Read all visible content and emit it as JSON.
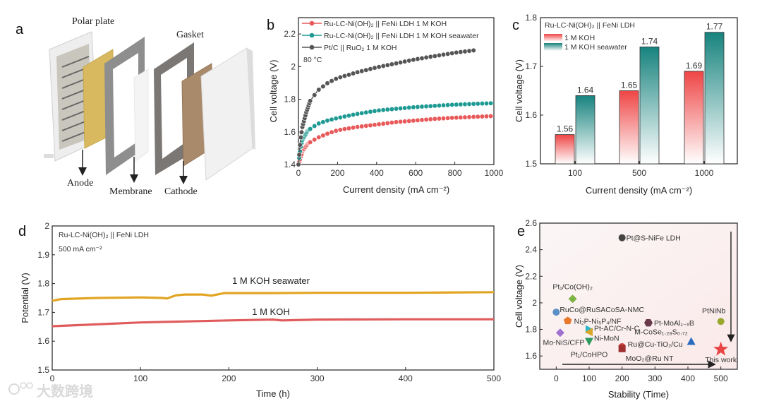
{
  "panel_labels": [
    "a",
    "b",
    "c",
    "d",
    "e"
  ],
  "watermark": "大数跨境",
  "panel_a": {
    "labels": {
      "polar_plate": "Polar plate",
      "gasket": "Gasket",
      "anode": "Anode",
      "membrane": "Membrane",
      "cathode": "Cathode"
    }
  },
  "colors": {
    "red": "#e8595a",
    "teal": "#1f9a93",
    "gray": "#555555",
    "orange": "#e2a523",
    "kohline": "#e05c5c"
  },
  "chart_data": [
    {
      "id": "b",
      "type": "line",
      "xlabel": "Current density (mA cm⁻²)",
      "ylabel": "Cell voltage (V)",
      "xlim": [
        0,
        1000
      ],
      "ylim": [
        1.4,
        2.3
      ],
      "xticks": [
        0,
        200,
        400,
        600,
        800,
        1000
      ],
      "yticks": [
        1.4,
        1.6,
        1.8,
        2.0,
        2.2
      ],
      "annotation": "80 °C",
      "legend": "top-left",
      "series": [
        {
          "name": "Ru-LC-Ni(OH)₂ || FeNi LDH 1 M KOH",
          "color": "#e8595a",
          "points": [
            [
              0,
              1.4
            ],
            [
              10,
              1.44
            ],
            [
              20,
              1.48
            ],
            [
              50,
              1.53
            ],
            [
              100,
              1.565
            ],
            [
              150,
              1.59
            ],
            [
              200,
              1.61
            ],
            [
              300,
              1.63
            ],
            [
              400,
              1.645
            ],
            [
              500,
              1.66
            ],
            [
              600,
              1.67
            ],
            [
              700,
              1.68
            ],
            [
              800,
              1.687
            ],
            [
              900,
              1.692
            ],
            [
              1000,
              1.697
            ]
          ]
        },
        {
          "name": "Ru-LC-Ni(OH)₂ || FeNi LDH 1 M KOH seawater",
          "color": "#1f9a93",
          "points": [
            [
              0,
              1.4
            ],
            [
              10,
              1.5
            ],
            [
              20,
              1.55
            ],
            [
              50,
              1.61
            ],
            [
              100,
              1.65
            ],
            [
              150,
              1.67
            ],
            [
              200,
              1.685
            ],
            [
              300,
              1.71
            ],
            [
              400,
              1.73
            ],
            [
              500,
              1.742
            ],
            [
              600,
              1.752
            ],
            [
              700,
              1.76
            ],
            [
              800,
              1.767
            ],
            [
              900,
              1.772
            ],
            [
              1000,
              1.776
            ]
          ]
        },
        {
          "name": "Pt/C || RuO₂ 1 M KOH",
          "color": "#555555",
          "points": [
            [
              0,
              1.4
            ],
            [
              10,
              1.55
            ],
            [
              20,
              1.63
            ],
            [
              40,
              1.72
            ],
            [
              60,
              1.79
            ],
            [
              100,
              1.855
            ],
            [
              150,
              1.9
            ],
            [
              200,
              1.93
            ],
            [
              300,
              1.965
            ],
            [
              400,
              1.995
            ],
            [
              500,
              2.02
            ],
            [
              600,
              2.045
            ],
            [
              700,
              2.065
            ],
            [
              800,
              2.085
            ],
            [
              900,
              2.1
            ]
          ]
        }
      ]
    },
    {
      "id": "c",
      "type": "bar",
      "title": "Ru-LC-Ni(OH)₂ || FeNi LDH",
      "xlabel": "Current density (mA cm⁻²)",
      "ylabel": "Cell voltage (V)",
      "ylim": [
        1.5,
        1.8
      ],
      "yticks": [
        1.5,
        1.6,
        1.7,
        1.8
      ],
      "categories": [
        "100",
        "500",
        "1000"
      ],
      "legend": "top-left",
      "series": [
        {
          "name": "1 M KOH",
          "color": "#ee4b4b",
          "values": [
            1.56,
            1.65,
            1.69
          ],
          "labels": [
            "1.56",
            "1.65",
            "1.69"
          ]
        },
        {
          "name": "1 M KOH seawater",
          "color": "#1b8a85",
          "values": [
            1.64,
            1.74,
            1.77
          ],
          "labels": [
            "1.64",
            "1.74",
            "1.77"
          ]
        }
      ]
    },
    {
      "id": "d",
      "type": "line",
      "title": "Ru-LC-Ni(OH)₂ || FeNi LDH",
      "subtitle": "500 mA cm⁻²",
      "xlabel": "Time (h)",
      "ylabel": "Potential (V)",
      "xlim": [
        0,
        500
      ],
      "ylim": [
        1.5,
        2.0
      ],
      "xticks": [
        0,
        100,
        200,
        300,
        400,
        500
      ],
      "yticks": [
        1.5,
        1.6,
        1.7,
        1.8,
        1.9,
        2.0
      ],
      "series": [
        {
          "name": "1 M KOH seawater",
          "color": "#e2a523",
          "points": [
            [
              0,
              1.74
            ],
            [
              10,
              1.746
            ],
            [
              50,
              1.75
            ],
            [
              100,
              1.752
            ],
            [
              125,
              1.75
            ],
            [
              130,
              1.748
            ],
            [
              140,
              1.759
            ],
            [
              150,
              1.762
            ],
            [
              170,
              1.762
            ],
            [
              180,
              1.758
            ],
            [
              195,
              1.767
            ],
            [
              250,
              1.767
            ],
            [
              300,
              1.768
            ],
            [
              400,
              1.768
            ],
            [
              500,
              1.77
            ]
          ]
        },
        {
          "name": "1 M KOH",
          "color": "#e05c5c",
          "points": [
            [
              0,
              1.652
            ],
            [
              100,
              1.665
            ],
            [
              200,
              1.672
            ],
            [
              250,
              1.675
            ],
            [
              260,
              1.672
            ],
            [
              300,
              1.675
            ],
            [
              400,
              1.676
            ],
            [
              500,
              1.676
            ]
          ]
        }
      ]
    },
    {
      "id": "e",
      "type": "scatter",
      "xlabel": "Stability (Time)",
      "ylabel": "Cell voltage (V)",
      "xlim": [
        -50,
        550
      ],
      "ylim": [
        1.5,
        2.6
      ],
      "xticks": [
        0,
        100,
        200,
        300,
        400,
        500
      ],
      "yticks": [
        1.6,
        1.8,
        2.0,
        2.2,
        2.4,
        2.6
      ],
      "points": [
        {
          "label": "Pt@S-NiFe LDH",
          "x": 200,
          "y": 2.49,
          "color": "#444444",
          "shape": "circle"
        },
        {
          "label": "Pt₁/Co(OH)₂",
          "x": 50,
          "y": 2.03,
          "color": "#7cb342",
          "shape": "diamond"
        },
        {
          "label": "RuCo@RuSACoSA-NMC",
          "x": 0,
          "y": 1.93,
          "color": "#5b8fc7",
          "shape": "circle"
        },
        {
          "label": "Ni₂P-Ni₅P₄/NF",
          "x": 35,
          "y": 1.865,
          "color": "#e8782a",
          "shape": "pentagon"
        },
        {
          "label": "Mo-NiS/CFP",
          "x": 12,
          "y": 1.775,
          "color": "#a070d0",
          "shape": "diamond"
        },
        {
          "label": "Pt-AC/Cr-N-C",
          "x": 100,
          "y": 1.8,
          "color": "#2ab8c8",
          "shape": "triangle-right"
        },
        {
          "label": "Ni-MoN",
          "x": 100,
          "y": 1.78,
          "color": "#d9a62a",
          "shape": "triangle-left"
        },
        {
          "label": "Pt₁/CoHPO",
          "x": 100,
          "y": 1.71,
          "color": "#2e9a5e",
          "shape": "triangle-down"
        },
        {
          "label": "Ru@Cu-TiO₂/Cu",
          "x": 200,
          "y": 1.67,
          "color": "#d03a3a",
          "shape": "circle"
        },
        {
          "label": "MoO₂@Ru NT",
          "x": 200,
          "y": 1.655,
          "color": "#a03030",
          "shape": "square"
        },
        {
          "label": "Pt-MoAl₁₋ₓB",
          "x": 280,
          "y": 1.85,
          "color": "#6a3a4a",
          "shape": "hexagon"
        },
        {
          "label": "M-CoSe₁.₂₈S₀.₇₂",
          "x": 410,
          "y": 1.71,
          "color": "#2a6ac0",
          "shape": "triangle-up"
        },
        {
          "label": "PtNiNb",
          "x": 500,
          "y": 1.86,
          "color": "#9aa830",
          "shape": "circle"
        },
        {
          "label": "This work",
          "x": 500,
          "y": 1.65,
          "color": "#e84545",
          "shape": "star"
        }
      ]
    }
  ]
}
